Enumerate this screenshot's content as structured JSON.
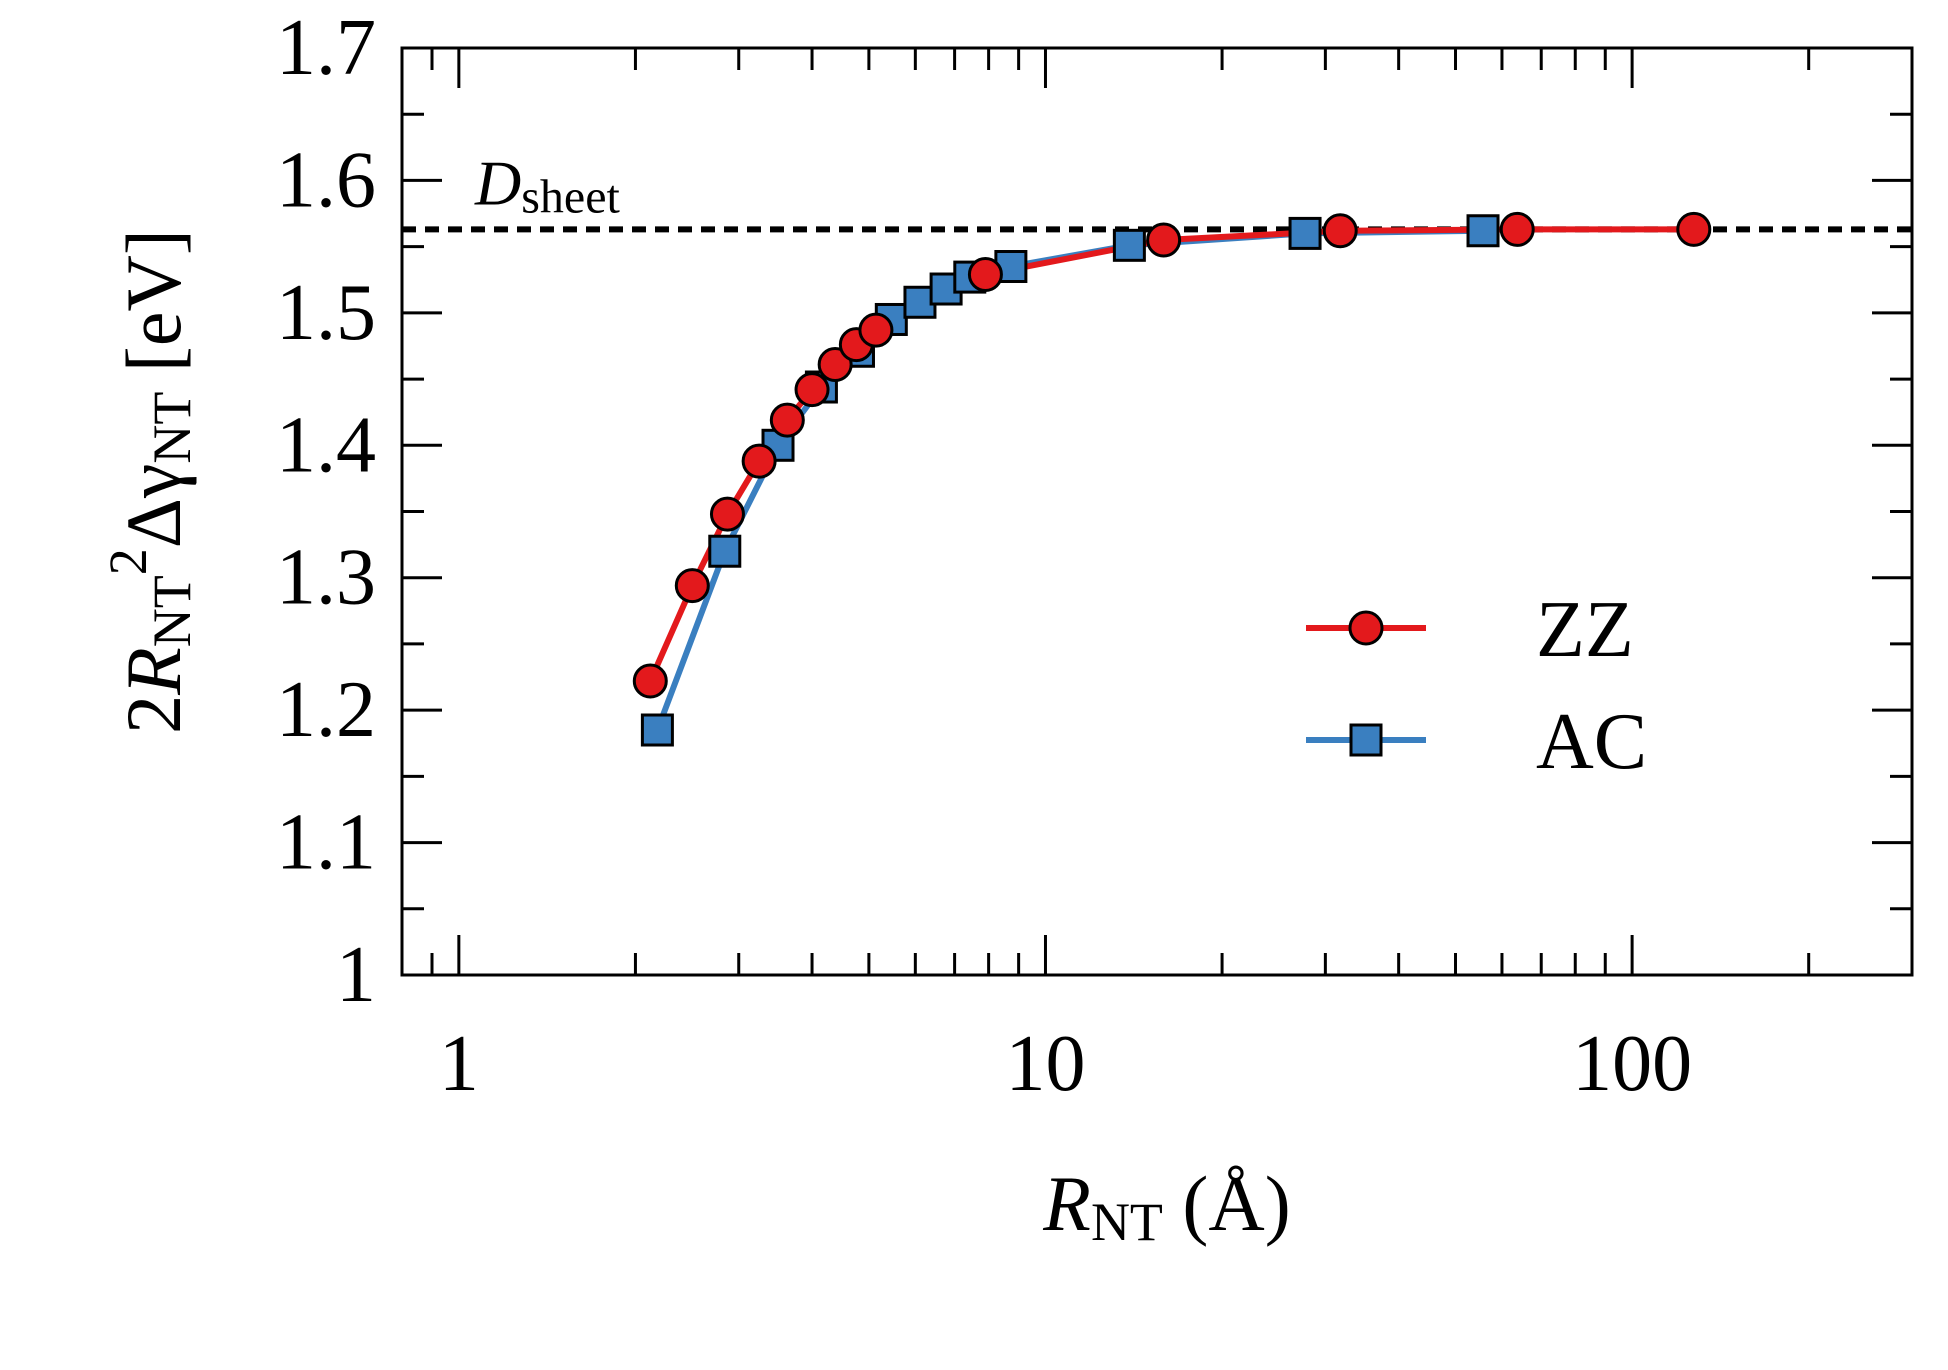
{
  "chart_data": {
    "type": "line",
    "xscale": "log",
    "xlim": [
      0.8,
      300
    ],
    "ylim": [
      1.0,
      1.7
    ],
    "xticks": [
      {
        "value": 1,
        "label": "1"
      },
      {
        "value": 10,
        "label": "10"
      },
      {
        "value": 100,
        "label": "100"
      }
    ],
    "yticks": [
      {
        "value": 1.0,
        "label": "1"
      },
      {
        "value": 1.1,
        "label": "1.1"
      },
      {
        "value": 1.2,
        "label": "1.2"
      },
      {
        "value": 1.3,
        "label": "1.3"
      },
      {
        "value": 1.4,
        "label": "1.4"
      },
      {
        "value": 1.5,
        "label": "1.5"
      },
      {
        "value": 1.6,
        "label": "1.6"
      },
      {
        "value": 1.7,
        "label": "1.7"
      }
    ],
    "xlabel": {
      "main": "R",
      "sub": "NT",
      "tail": " (Å)"
    },
    "ylabel": {
      "p1": "2",
      "p2": "R",
      "p3": "NT",
      "p4": "2",
      "p5": "Δγ",
      "p6": "NT",
      "p7": " [eV]"
    },
    "reference_line": {
      "y": 1.563,
      "style": "dashed",
      "label_main": "D",
      "label_sub": "sheet"
    },
    "legend": {
      "placement": "right-middle"
    },
    "series": [
      {
        "name": "ZZ",
        "marker": "circle",
        "color": "#e3191c",
        "x": [
          2.12,
          2.5,
          2.87,
          3.25,
          3.63,
          4.0,
          4.38,
          4.76,
          5.14,
          7.9,
          15.9,
          31.8,
          63.7,
          127.4
        ],
        "y": [
          1.222,
          1.294,
          1.348,
          1.388,
          1.419,
          1.442,
          1.461,
          1.476,
          1.487,
          1.529,
          1.555,
          1.562,
          1.563,
          1.563
        ]
      },
      {
        "name": "AC",
        "marker": "square",
        "color": "#3a7fc0",
        "x": [
          2.18,
          2.84,
          3.5,
          4.15,
          4.8,
          5.46,
          6.11,
          6.77,
          7.43,
          8.73,
          13.9,
          27.7,
          55.7
        ],
        "y": [
          1.185,
          1.32,
          1.4,
          1.444,
          1.471,
          1.495,
          1.508,
          1.518,
          1.527,
          1.535,
          1.551,
          1.56,
          1.562
        ]
      }
    ]
  }
}
